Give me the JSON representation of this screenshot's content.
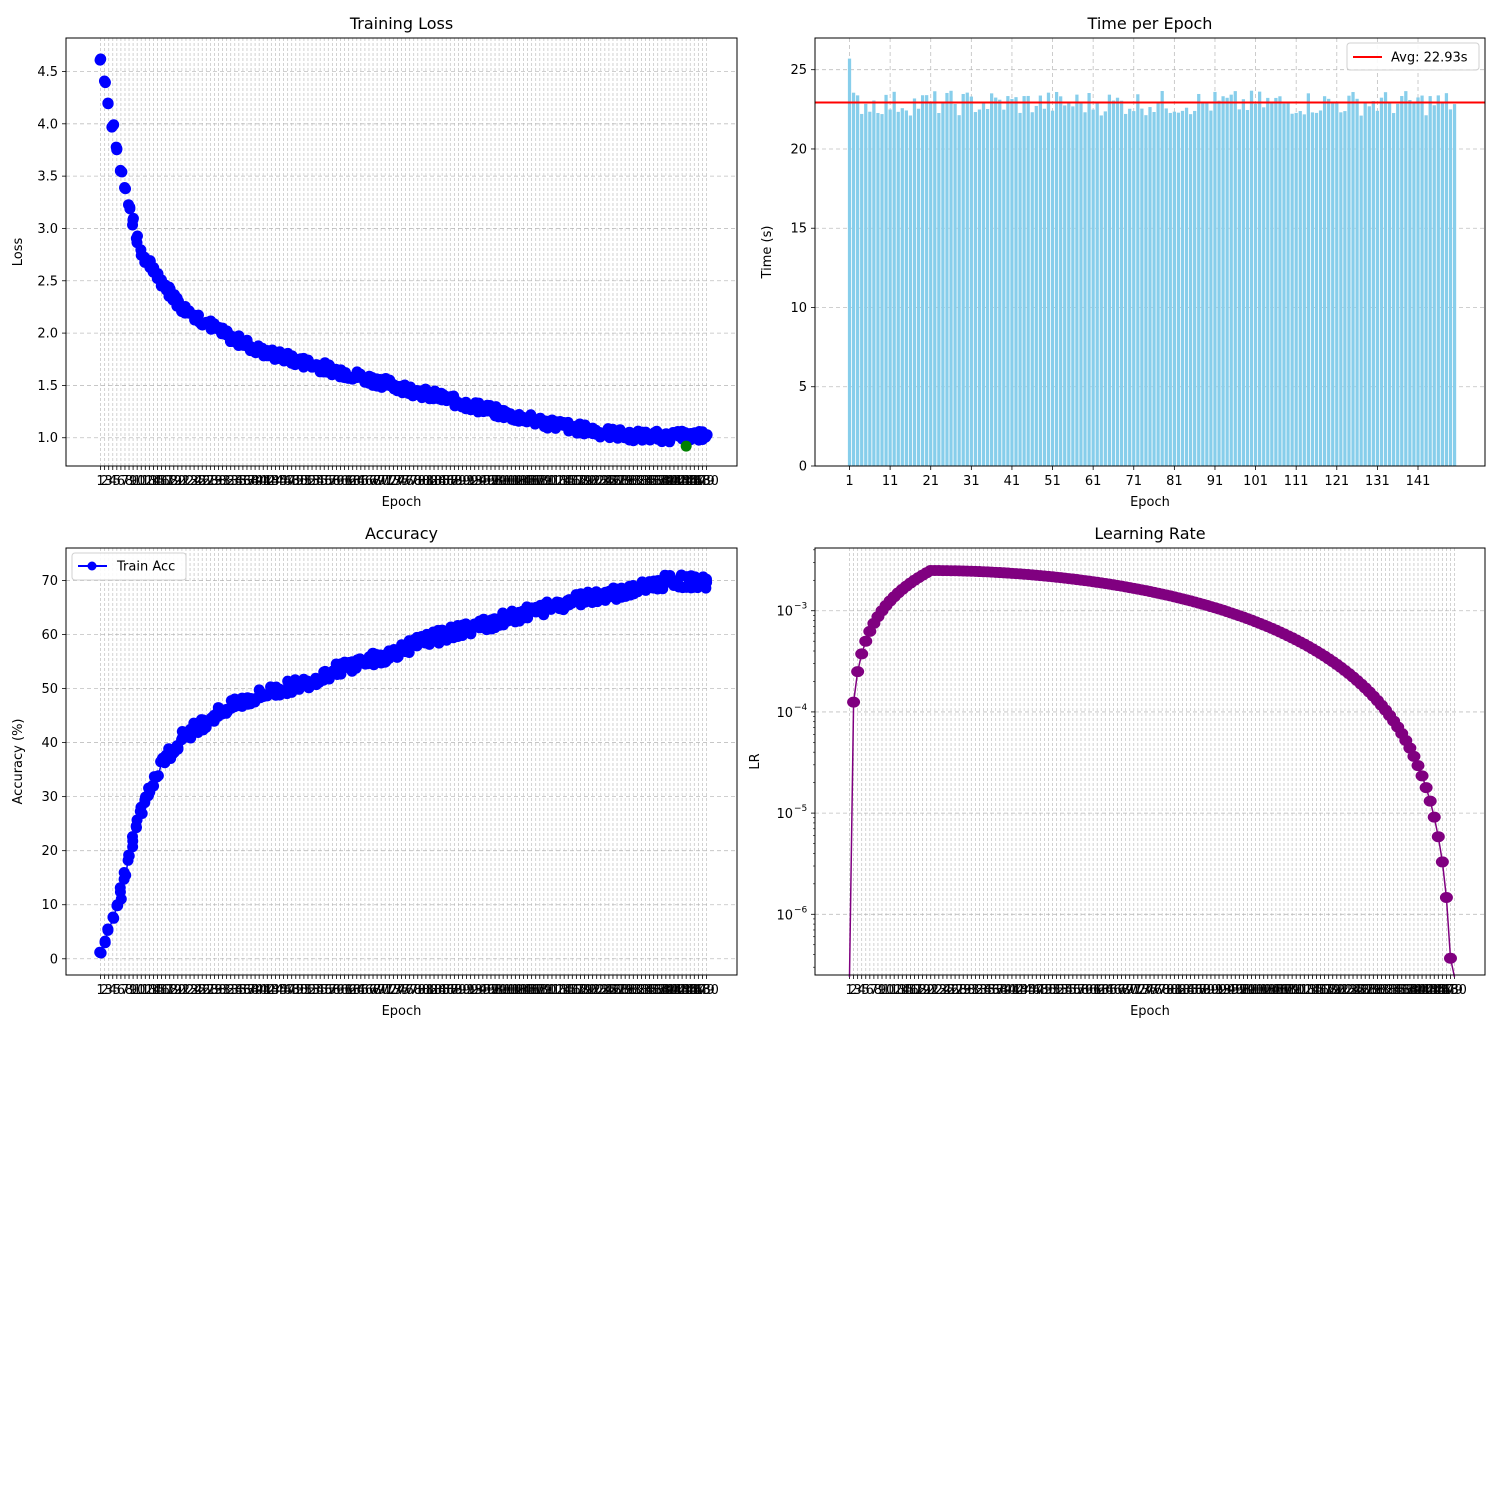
{
  "chart_data": [
    {
      "id": "loss",
      "type": "scatter",
      "title": "Training Loss",
      "xlabel": "Epoch",
      "ylabel": "Loss",
      "xlim": [
        -7.5,
        157.5
      ],
      "ylim": [
        0.73,
        4.82
      ],
      "yticks": [
        1.0,
        1.5,
        2.0,
        2.5,
        3.0,
        3.5,
        4.0,
        4.5
      ],
      "grid": true,
      "epochs": 150,
      "marker_color": "#0000ff",
      "highlight": {
        "epoch": 145,
        "value": 0.92,
        "color": "#008000"
      },
      "x": [
        1,
        6,
        11,
        16,
        21,
        31,
        41,
        51,
        61,
        71,
        81,
        91,
        101,
        111,
        121,
        131,
        141,
        150
      ],
      "values": [
        4.62,
        3.55,
        2.75,
        2.5,
        2.25,
        2.0,
        1.82,
        1.72,
        1.62,
        1.52,
        1.42,
        1.32,
        1.22,
        1.14,
        1.07,
        1.02,
        1.01,
        1.02
      ],
      "spread": 0.1
    },
    {
      "id": "time",
      "type": "bar",
      "title": "Time per Epoch",
      "xlabel": "Epoch",
      "ylabel": "Time (s)",
      "xlim": [
        -7.5,
        157.5
      ],
      "ylim": [
        0,
        27
      ],
      "yticks": [
        0,
        5,
        10,
        15,
        20,
        25
      ],
      "xticks": [
        1,
        11,
        21,
        31,
        41,
        51,
        61,
        71,
        81,
        91,
        101,
        111,
        121,
        131,
        141
      ],
      "grid": true,
      "bar_color": "#87ceeb",
      "epochs": 150,
      "first_value": 25.7,
      "base_value": 22.9,
      "spread": 0.8,
      "average": {
        "value": 22.93,
        "label": "Avg: 22.93s",
        "color": "#ff0000"
      },
      "legend_position": "upper-right"
    },
    {
      "id": "accuracy",
      "type": "line",
      "title": "Accuracy",
      "xlabel": "Epoch",
      "ylabel": "Accuracy (%)",
      "xlim": [
        -7.5,
        157.5
      ],
      "ylim": [
        -3,
        76
      ],
      "yticks": [
        0,
        10,
        20,
        30,
        40,
        50,
        60,
        70
      ],
      "grid": true,
      "epochs": 150,
      "series": [
        {
          "name": "Train Acc",
          "color": "#0000ff",
          "x": [
            1,
            6,
            11,
            16,
            21,
            31,
            41,
            51,
            61,
            71,
            81,
            91,
            101,
            111,
            121,
            131,
            141,
            150
          ],
          "values": [
            1,
            12,
            28,
            36,
            41,
            46,
            49,
            51,
            54,
            56,
            59,
            61,
            63,
            65,
            67,
            68,
            70,
            69.5
          ]
        }
      ],
      "spread": 1.2,
      "legend_position": "upper-left"
    },
    {
      "id": "lr",
      "type": "line",
      "title": "Learning Rate",
      "xlabel": "Epoch",
      "ylabel": "LR",
      "xlim": [
        -7.5,
        157.5
      ],
      "yscale": "log",
      "ylim_log10": [
        -6.6,
        -2.38
      ],
      "yticks_log10": [
        -6,
        -5,
        -4,
        -3
      ],
      "ytick_labels": [
        "10",
        "10",
        "10",
        "10"
      ],
      "ytick_exponents": [
        "−6",
        "−5",
        "−4",
        "−3"
      ],
      "grid": true,
      "color": "#800080",
      "epochs": 150,
      "warmup_epochs": 20,
      "peak_lr": 0.0025
    }
  ]
}
